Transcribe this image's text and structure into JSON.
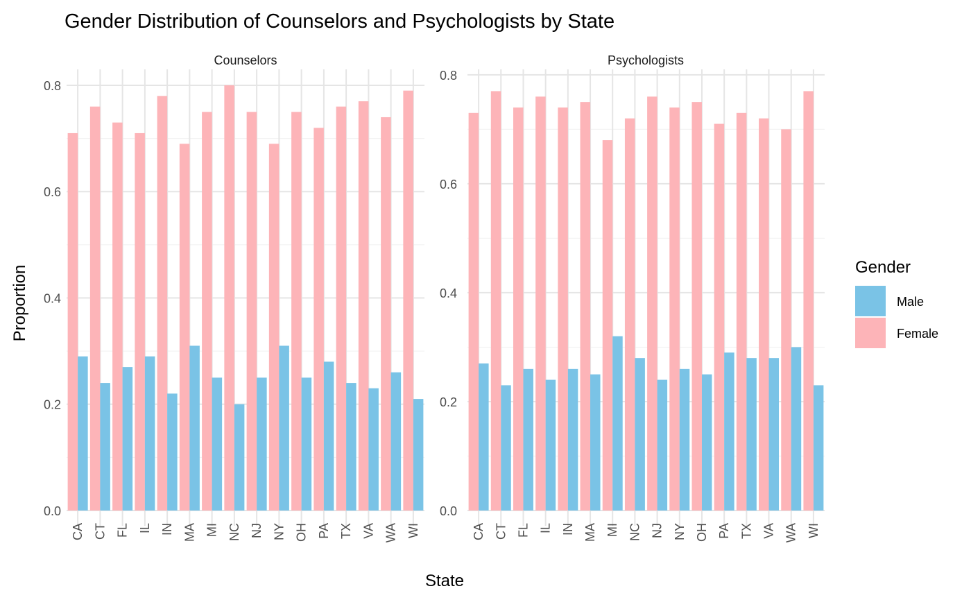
{
  "chart_data": {
    "type": "bar",
    "title": "Gender Distribution of Counselors and Psychologists by State",
    "xlabel": "State",
    "ylabel": "Proportion",
    "legend": {
      "title": "Gender",
      "position": "right",
      "entries": [
        {
          "name": "Male",
          "color": "#7AC3E6"
        },
        {
          "name": "Female",
          "color": "#FDB4B8"
        }
      ]
    },
    "grid": true,
    "categories": [
      "CA",
      "CT",
      "FL",
      "IL",
      "IN",
      "MA",
      "MI",
      "NC",
      "NJ",
      "NY",
      "OH",
      "PA",
      "TX",
      "VA",
      "WA",
      "WI"
    ],
    "panels": [
      {
        "name": "Counselors",
        "ylim": [
          0,
          0.83
        ],
        "yticks": [
          "0.0",
          "0.2",
          "0.4",
          "0.6",
          "0.8"
        ],
        "series": [
          {
            "name": "Female",
            "values": [
              0.71,
              0.76,
              0.73,
              0.71,
              0.78,
              0.69,
              0.75,
              0.8,
              0.75,
              0.69,
              0.75,
              0.72,
              0.76,
              0.77,
              0.74,
              0.79
            ]
          },
          {
            "name": "Male",
            "values": [
              0.29,
              0.24,
              0.27,
              0.29,
              0.22,
              0.31,
              0.25,
              0.2,
              0.25,
              0.31,
              0.25,
              0.28,
              0.24,
              0.23,
              0.26,
              0.21
            ]
          }
        ]
      },
      {
        "name": "Psychologists",
        "ylim": [
          0,
          0.81
        ],
        "yticks": [
          "0.0",
          "0.2",
          "0.4",
          "0.6",
          "0.8"
        ],
        "series": [
          {
            "name": "Female",
            "values": [
              0.73,
              0.77,
              0.74,
              0.76,
              0.74,
              0.75,
              0.68,
              0.72,
              0.76,
              0.74,
              0.75,
              0.71,
              0.73,
              0.72,
              0.7,
              0.77
            ]
          },
          {
            "name": "Male",
            "values": [
              0.27,
              0.23,
              0.26,
              0.24,
              0.26,
              0.25,
              0.32,
              0.28,
              0.24,
              0.26,
              0.25,
              0.29,
              0.28,
              0.28,
              0.3,
              0.23
            ]
          }
        ]
      }
    ]
  }
}
